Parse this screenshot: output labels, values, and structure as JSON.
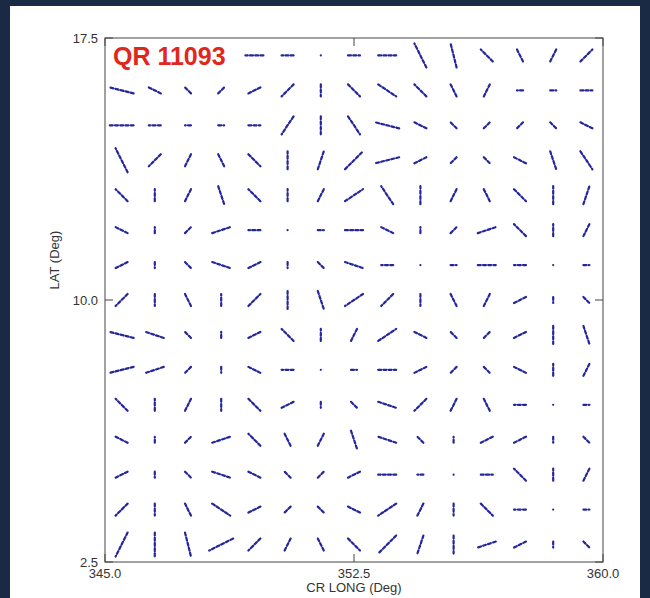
{
  "chart_data": {
    "type": "quiver",
    "title": "QR 11093",
    "x_label": "CR LONG (Deg)",
    "y_label": "LAT (Deg)",
    "color": "#25259c",
    "xlim": [
      345,
      360
    ],
    "ylim": [
      2.5,
      17.5
    ],
    "xticks": [
      {
        "value": 345,
        "label": "345.0"
      },
      352.5,
      {
        "value": 360,
        "label": "360.0"
      }
    ],
    "yticks": [
      2.5,
      {
        "value": 10,
        "label": "10.0"
      },
      17.5
    ],
    "x": [
      345.5,
      346.5,
      347.5,
      348.5,
      349.5,
      350.5,
      351.5,
      352.5,
      353.5,
      354.5,
      355.5,
      356.5,
      357.5,
      358.5,
      359.5
    ],
    "y": [
      17,
      16,
      15,
      14,
      13,
      12,
      11,
      10,
      9,
      8,
      7,
      6,
      5,
      4,
      3
    ],
    "u": [
      [
        -4,
        -2,
        -1,
        1,
        -3,
        -2,
        0,
        2,
        3,
        -2,
        -1,
        -2,
        -1,
        1,
        2
      ],
      [
        -4,
        -2,
        -1,
        1,
        2,
        -2,
        0,
        2,
        3,
        -2,
        -1,
        1,
        -1,
        1,
        2
      ],
      [
        -4,
        -2,
        -1,
        1,
        2,
        -2,
        0,
        2,
        -4,
        -2,
        -1,
        1,
        -1,
        1,
        2
      ],
      [
        -2,
        -2,
        -1,
        1,
        2,
        0,
        1,
        3,
        -4,
        -2,
        -1,
        1,
        2,
        1,
        2
      ],
      [
        -2,
        0,
        1,
        1,
        -2,
        0,
        1,
        3,
        -2,
        0,
        -1,
        1,
        2,
        0,
        1
      ],
      [
        -2,
        0,
        1,
        3,
        -2,
        0,
        1,
        3,
        -2,
        0,
        1,
        3,
        -2,
        0,
        1
      ],
      [
        -2,
        0,
        1,
        3,
        -2,
        0,
        1,
        3,
        -2,
        0,
        1,
        3,
        -2,
        0,
        1
      ],
      [
        -2,
        0,
        -1,
        0,
        2,
        0,
        1,
        -3,
        -2,
        0,
        1,
        1,
        -2,
        0,
        1
      ],
      [
        -4,
        -3,
        -1,
        0,
        2,
        -2,
        0,
        1,
        3,
        -2,
        -1,
        1,
        2,
        0,
        1
      ],
      [
        -4,
        -3,
        -1,
        0,
        2,
        -2,
        0,
        1,
        3,
        -2,
        -1,
        1,
        2,
        0,
        1
      ],
      [
        -2,
        0,
        -1,
        0,
        2,
        -2,
        0,
        1,
        3,
        -2,
        -1,
        1,
        -2,
        0,
        1
      ],
      [
        -2,
        0,
        1,
        3,
        -2,
        -1,
        1,
        1,
        -3,
        -1,
        0,
        2,
        -2,
        0,
        1
      ],
      [
        -2,
        0,
        1,
        3,
        -2,
        -1,
        1,
        2,
        -3,
        -1,
        0,
        2,
        -2,
        0,
        1
      ],
      [
        -2,
        0,
        1,
        3,
        -2,
        -1,
        1,
        2,
        -3,
        -1,
        0,
        2,
        -2,
        0,
        1
      ],
      [
        -2,
        0,
        1,
        -4,
        -2,
        -1,
        1,
        2,
        -3,
        -1,
        0,
        -3,
        -2,
        0,
        1
      ]
    ],
    "v": [
      [
        3,
        3,
        3,
        3,
        0,
        0,
        0,
        0,
        0,
        4,
        4,
        2,
        2,
        2,
        2
      ],
      [
        1,
        1,
        1,
        1,
        1,
        -2,
        -2,
        -2,
        -2,
        2,
        2,
        2,
        0,
        0,
        0
      ],
      [
        0,
        0,
        0,
        0,
        0,
        -3,
        -3,
        -3,
        1,
        1,
        1,
        1,
        -1,
        -1,
        -1
      ],
      [
        4,
        -2,
        -2,
        -2,
        -2,
        3,
        3,
        3,
        -1,
        -1,
        -1,
        -1,
        -1,
        -3,
        -3
      ],
      [
        2,
        2,
        2,
        -3,
        2,
        2,
        2,
        2,
        3,
        3,
        -2,
        -2,
        -2,
        3,
        3
      ],
      [
        1,
        1,
        1,
        1,
        0,
        0,
        0,
        0,
        1,
        1,
        1,
        1,
        2,
        2,
        2
      ],
      [
        -1,
        -1,
        -1,
        -1,
        -1,
        -1,
        -1,
        -1,
        0,
        0,
        0,
        0,
        0,
        0,
        0
      ],
      [
        -2,
        -2,
        2,
        2,
        2,
        -3,
        -3,
        -2,
        -2,
        -2,
        -2,
        2,
        -1,
        -1,
        -1
      ],
      [
        1,
        1,
        1,
        1,
        1,
        2,
        2,
        2,
        2,
        1,
        1,
        1,
        1,
        -3,
        -3
      ],
      [
        -1,
        -1,
        -1,
        -1,
        -1,
        0,
        0,
        0,
        0,
        -1,
        -1,
        -1,
        -1,
        2,
        2
      ],
      [
        2,
        2,
        -2,
        -2,
        -2,
        -1,
        -1,
        -1,
        -1,
        -2,
        -2,
        -2,
        0,
        0,
        0
      ],
      [
        1,
        1,
        1,
        1,
        2,
        2,
        2,
        -3,
        1,
        1,
        1,
        1,
        -1,
        -1,
        -1
      ],
      [
        -1,
        -1,
        -1,
        -1,
        1,
        1,
        1,
        1,
        0,
        0,
        0,
        0,
        2,
        2,
        2
      ],
      [
        -2,
        -2,
        -2,
        -2,
        -1,
        -1,
        -1,
        -1,
        -2,
        -2,
        -2,
        -2,
        0,
        0,
        0
      ],
      [
        -4,
        -4,
        -4,
        -2,
        -2,
        -2,
        -2,
        -2,
        -3,
        -3,
        -3,
        -1,
        -1,
        -1,
        -1
      ]
    ]
  }
}
